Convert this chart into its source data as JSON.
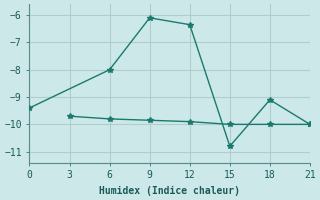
{
  "xlabel": "Humidex (Indice chaleur)",
  "line1_x": [
    0,
    6,
    9,
    12,
    15,
    18,
    21
  ],
  "line1_y": [
    -9.4,
    -8.0,
    -6.1,
    -6.35,
    -10.8,
    -9.1,
    -10.0
  ],
  "line2_x": [
    3,
    6,
    9,
    12,
    15,
    18,
    21
  ],
  "line2_y": [
    -9.7,
    -9.8,
    -9.85,
    -9.9,
    -10.0,
    -10.0,
    -10.0
  ],
  "line_color": "#1a7a6e",
  "bg_color": "#cce8e8",
  "grid_color": "#b0cccc",
  "xlim": [
    0,
    21
  ],
  "ylim": [
    -11.4,
    -5.6
  ],
  "xticks": [
    0,
    3,
    6,
    9,
    12,
    15,
    18,
    21
  ],
  "yticks": [
    -11,
    -10,
    -9,
    -8,
    -7,
    -6
  ],
  "marker": "*",
  "markersize": 4,
  "linewidth": 1.0,
  "tick_fontsize": 7,
  "xlabel_fontsize": 7
}
